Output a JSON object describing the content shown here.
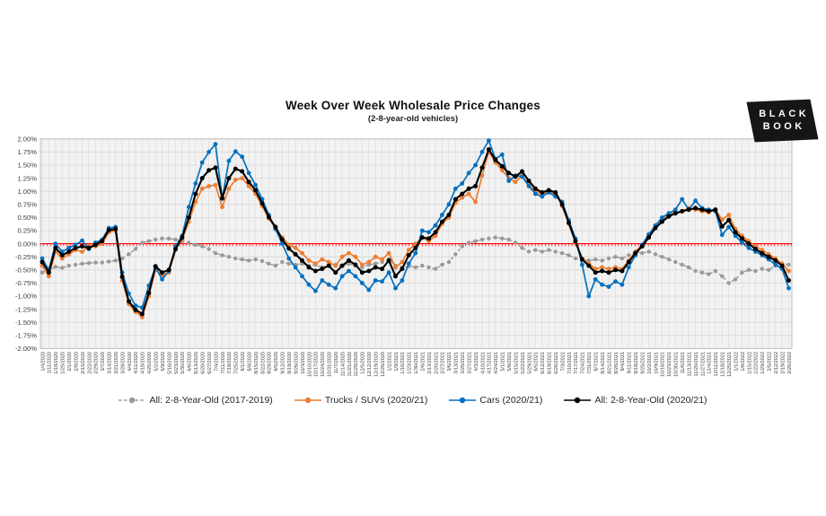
{
  "logo": {
    "line1": "BLACK",
    "line2": "BOOK",
    "bg": "#161616",
    "text_color": "#FFFFFF"
  },
  "chart_data": {
    "type": "line",
    "title": "Week Over Week Wholesale Price Changes",
    "subtitle": "(2-8-year-old vehicles)",
    "ylim": [
      -2,
      2
    ],
    "ytick_step": 0.25,
    "ytick_format": "percent2",
    "grid": true,
    "plot_bg": "#F2F2F2",
    "vgrid_color": "#DFDFDF",
    "hgrid_color": "#D6D6D6",
    "border_color": "#BFBFBF",
    "zero_line": {
      "value": 0,
      "color": "#FF0000"
    },
    "legend_position": "bottom",
    "x": [
      "1/4/2020",
      "1/11/2020",
      "1/18/2020",
      "1/25/2020",
      "2/1/2020",
      "2/8/2020",
      "2/15/2020",
      "2/22/2020",
      "2/29/2020",
      "3/7/2020",
      "3/14/2020",
      "3/21/2020",
      "3/28/2020",
      "4/4/2020",
      "4/11/2020",
      "4/18/2020",
      "4/25/2020",
      "5/2/2020",
      "5/9/2020",
      "5/16/2020",
      "5/23/2020",
      "5/30/2020",
      "6/6/2020",
      "6/13/2020",
      "6/20/2020",
      "6/27/2020",
      "7/4/2020",
      "7/11/2020",
      "7/18/2020",
      "7/25/2020",
      "8/1/2020",
      "8/8/2020",
      "8/15/2020",
      "8/22/2020",
      "8/29/2020",
      "9/5/2020",
      "9/12/2020",
      "9/19/2020",
      "9/26/2020",
      "10/3/2020",
      "10/10/2020",
      "10/17/2020",
      "10/24/2020",
      "10/31/2020",
      "11/7/2020",
      "11/14/2020",
      "11/21/2020",
      "11/28/2020",
      "12/5/2020",
      "12/12/2020",
      "12/19/2020",
      "12/26/2020",
      "1/2/2021",
      "1/9/2021",
      "1/16/2021",
      "1/23/2021",
      "1/30/2021",
      "2/6/2021",
      "2/13/2021",
      "2/20/2021",
      "2/27/2021",
      "3/6/2021",
      "3/13/2021",
      "3/20/2021",
      "3/27/2021",
      "4/3/2021",
      "4/10/2021",
      "4/17/2021",
      "4/24/2021",
      "5/1/2021",
      "5/8/2021",
      "5/15/2021",
      "5/22/2021",
      "5/29/2021",
      "6/5/2021",
      "6/12/2021",
      "6/19/2021",
      "6/26/2021",
      "7/3/2021",
      "7/10/2021",
      "7/17/2021",
      "7/24/2021",
      "7/31/2021",
      "8/7/2021",
      "8/14/2021",
      "8/21/2021",
      "8/28/2021",
      "9/4/2021",
      "9/11/2021",
      "9/18/2021",
      "9/25/2021",
      "10/2/2021",
      "10/9/2021",
      "10/16/2021",
      "10/23/2021",
      "10/30/2021",
      "11/6/2021",
      "11/13/2021",
      "11/20/2021",
      "11/27/2021",
      "12/4/2021",
      "12/11/2021",
      "12/18/2021",
      "12/25/2021",
      "1/1/2022",
      "1/8/2022",
      "1/15/2022",
      "1/22/2022",
      "1/29/2022",
      "2/5/2022",
      "2/12/2022",
      "2/19/2022",
      "2/26/2022"
    ],
    "series": [
      {
        "id": "all-2017-2019",
        "name": "All: 2-8-Year-Old (2017-2019)",
        "color": "#999999",
        "line_style": "dashed",
        "marker": "circle",
        "values": [
          -0.55,
          -0.5,
          -0.44,
          -0.46,
          -0.42,
          -0.4,
          -0.38,
          -0.37,
          -0.36,
          -0.36,
          -0.34,
          -0.32,
          -0.28,
          -0.2,
          -0.1,
          0.02,
          0.05,
          0.08,
          0.1,
          0.1,
          0.08,
          0.05,
          0.02,
          -0.02,
          -0.05,
          -0.1,
          -0.18,
          -0.22,
          -0.25,
          -0.28,
          -0.3,
          -0.32,
          -0.3,
          -0.33,
          -0.38,
          -0.42,
          -0.35,
          -0.38,
          -0.4,
          -0.38,
          -0.42,
          -0.4,
          -0.45,
          -0.42,
          -0.4,
          -0.42,
          -0.38,
          -0.42,
          -0.45,
          -0.4,
          -0.38,
          -0.35,
          -0.3,
          -0.42,
          -0.45,
          -0.43,
          -0.45,
          -0.42,
          -0.45,
          -0.48,
          -0.4,
          -0.35,
          -0.2,
          -0.05,
          0.02,
          0.05,
          0.08,
          0.1,
          0.12,
          0.1,
          0.08,
          0.02,
          -0.08,
          -0.15,
          -0.12,
          -0.15,
          -0.12,
          -0.15,
          -0.18,
          -0.22,
          -0.28,
          -0.3,
          -0.32,
          -0.3,
          -0.32,
          -0.28,
          -0.25,
          -0.28,
          -0.22,
          -0.15,
          -0.18,
          -0.15,
          -0.2,
          -0.25,
          -0.3,
          -0.35,
          -0.4,
          -0.45,
          -0.52,
          -0.55,
          -0.58,
          -0.52,
          -0.62,
          -0.75,
          -0.68,
          -0.55,
          -0.5,
          -0.52,
          -0.48,
          -0.5,
          -0.42,
          -0.38,
          -0.4
        ]
      },
      {
        "id": "trucks-suvs",
        "name": "Trucks / SUVs (2020/21)",
        "color": "#ED7D31",
        "line_style": "solid",
        "marker": "circle",
        "values": [
          -0.42,
          -0.62,
          -0.15,
          -0.28,
          -0.2,
          -0.12,
          -0.15,
          -0.05,
          -0.05,
          0.0,
          0.22,
          0.25,
          -0.7,
          -1.15,
          -1.3,
          -1.4,
          -1.0,
          -0.5,
          -0.6,
          -0.55,
          -0.12,
          0.08,
          0.42,
          0.8,
          1.05,
          1.1,
          1.12,
          0.7,
          1.05,
          1.22,
          1.25,
          1.1,
          0.95,
          0.72,
          0.48,
          0.3,
          0.12,
          -0.02,
          -0.08,
          -0.18,
          -0.32,
          -0.38,
          -0.3,
          -0.35,
          -0.42,
          -0.25,
          -0.18,
          -0.25,
          -0.4,
          -0.35,
          -0.25,
          -0.3,
          -0.18,
          -0.45,
          -0.35,
          -0.12,
          0.0,
          0.12,
          0.05,
          0.15,
          0.38,
          0.5,
          0.78,
          0.88,
          0.95,
          0.8,
          1.3,
          1.75,
          1.55,
          1.4,
          1.25,
          1.18,
          1.3,
          1.12,
          1.0,
          0.95,
          1.0,
          0.95,
          0.72,
          0.38,
          0.02,
          -0.28,
          -0.38,
          -0.48,
          -0.45,
          -0.48,
          -0.45,
          -0.48,
          -0.32,
          -0.15,
          -0.02,
          0.15,
          0.32,
          0.45,
          0.55,
          0.6,
          0.62,
          0.68,
          0.65,
          0.62,
          0.6,
          0.65,
          0.46,
          0.55,
          0.28,
          0.15,
          0.05,
          -0.05,
          -0.12,
          -0.2,
          -0.28,
          -0.38,
          -0.52
        ]
      },
      {
        "id": "cars",
        "name": "Cars (2020/21)",
        "color": "#0070C0",
        "line_style": "solid",
        "marker": "circle",
        "values": [
          -0.28,
          -0.5,
          0.0,
          -0.15,
          -0.08,
          -0.02,
          0.06,
          -0.1,
          0.02,
          0.08,
          0.3,
          0.32,
          -0.55,
          -0.95,
          -1.18,
          -1.22,
          -0.8,
          -0.45,
          -0.68,
          -0.52,
          -0.05,
          0.15,
          0.7,
          1.15,
          1.55,
          1.75,
          1.9,
          0.86,
          1.58,
          1.76,
          1.66,
          1.35,
          1.12,
          0.85,
          0.55,
          0.28,
          0.0,
          -0.28,
          -0.45,
          -0.62,
          -0.78,
          -0.9,
          -0.7,
          -0.78,
          -0.85,
          -0.62,
          -0.52,
          -0.62,
          -0.75,
          -0.88,
          -0.7,
          -0.72,
          -0.55,
          -0.85,
          -0.7,
          -0.38,
          -0.18,
          0.25,
          0.22,
          0.35,
          0.55,
          0.75,
          1.05,
          1.15,
          1.35,
          1.5,
          1.75,
          1.97,
          1.62,
          1.7,
          1.2,
          1.3,
          1.28,
          1.1,
          0.95,
          0.9,
          0.98,
          0.9,
          0.8,
          0.45,
          0.1,
          -0.4,
          -1.0,
          -0.68,
          -0.78,
          -0.82,
          -0.72,
          -0.78,
          -0.45,
          -0.22,
          -0.02,
          0.18,
          0.35,
          0.5,
          0.58,
          0.65,
          0.85,
          0.65,
          0.82,
          0.68,
          0.65,
          0.62,
          0.17,
          0.32,
          0.15,
          0.02,
          -0.08,
          -0.15,
          -0.22,
          -0.3,
          -0.4,
          -0.48,
          -0.85
        ]
      },
      {
        "id": "all-2020-21",
        "name": "All: 2-8-Year-Old (2020/21)",
        "color": "#000000",
        "line_style": "solid",
        "marker": "circle",
        "values": [
          -0.35,
          -0.55,
          -0.08,
          -0.22,
          -0.15,
          -0.08,
          -0.05,
          -0.08,
          -0.02,
          0.05,
          0.26,
          0.28,
          -0.63,
          -1.1,
          -1.26,
          -1.34,
          -0.94,
          -0.43,
          -0.55,
          -0.5,
          -0.1,
          0.12,
          0.5,
          0.95,
          1.25,
          1.4,
          1.45,
          0.87,
          1.25,
          1.43,
          1.38,
          1.18,
          1.02,
          0.77,
          0.51,
          0.32,
          0.08,
          -0.09,
          -0.2,
          -0.32,
          -0.45,
          -0.52,
          -0.48,
          -0.42,
          -0.55,
          -0.42,
          -0.32,
          -0.4,
          -0.55,
          -0.52,
          -0.45,
          -0.48,
          -0.32,
          -0.62,
          -0.48,
          -0.22,
          -0.08,
          0.12,
          0.1,
          0.22,
          0.42,
          0.55,
          0.85,
          0.95,
          1.05,
          1.1,
          1.45,
          1.8,
          1.6,
          1.48,
          1.35,
          1.28,
          1.38,
          1.2,
          1.05,
          0.98,
          1.02,
          0.98,
          0.75,
          0.4,
          0.05,
          -0.3,
          -0.42,
          -0.55,
          -0.52,
          -0.55,
          -0.5,
          -0.52,
          -0.35,
          -0.18,
          -0.05,
          0.12,
          0.3,
          0.42,
          0.52,
          0.58,
          0.62,
          0.65,
          0.68,
          0.65,
          0.62,
          0.65,
          0.33,
          0.45,
          0.22,
          0.1,
          0.0,
          -0.1,
          -0.18,
          -0.25,
          -0.32,
          -0.42,
          -0.7
        ]
      }
    ]
  }
}
